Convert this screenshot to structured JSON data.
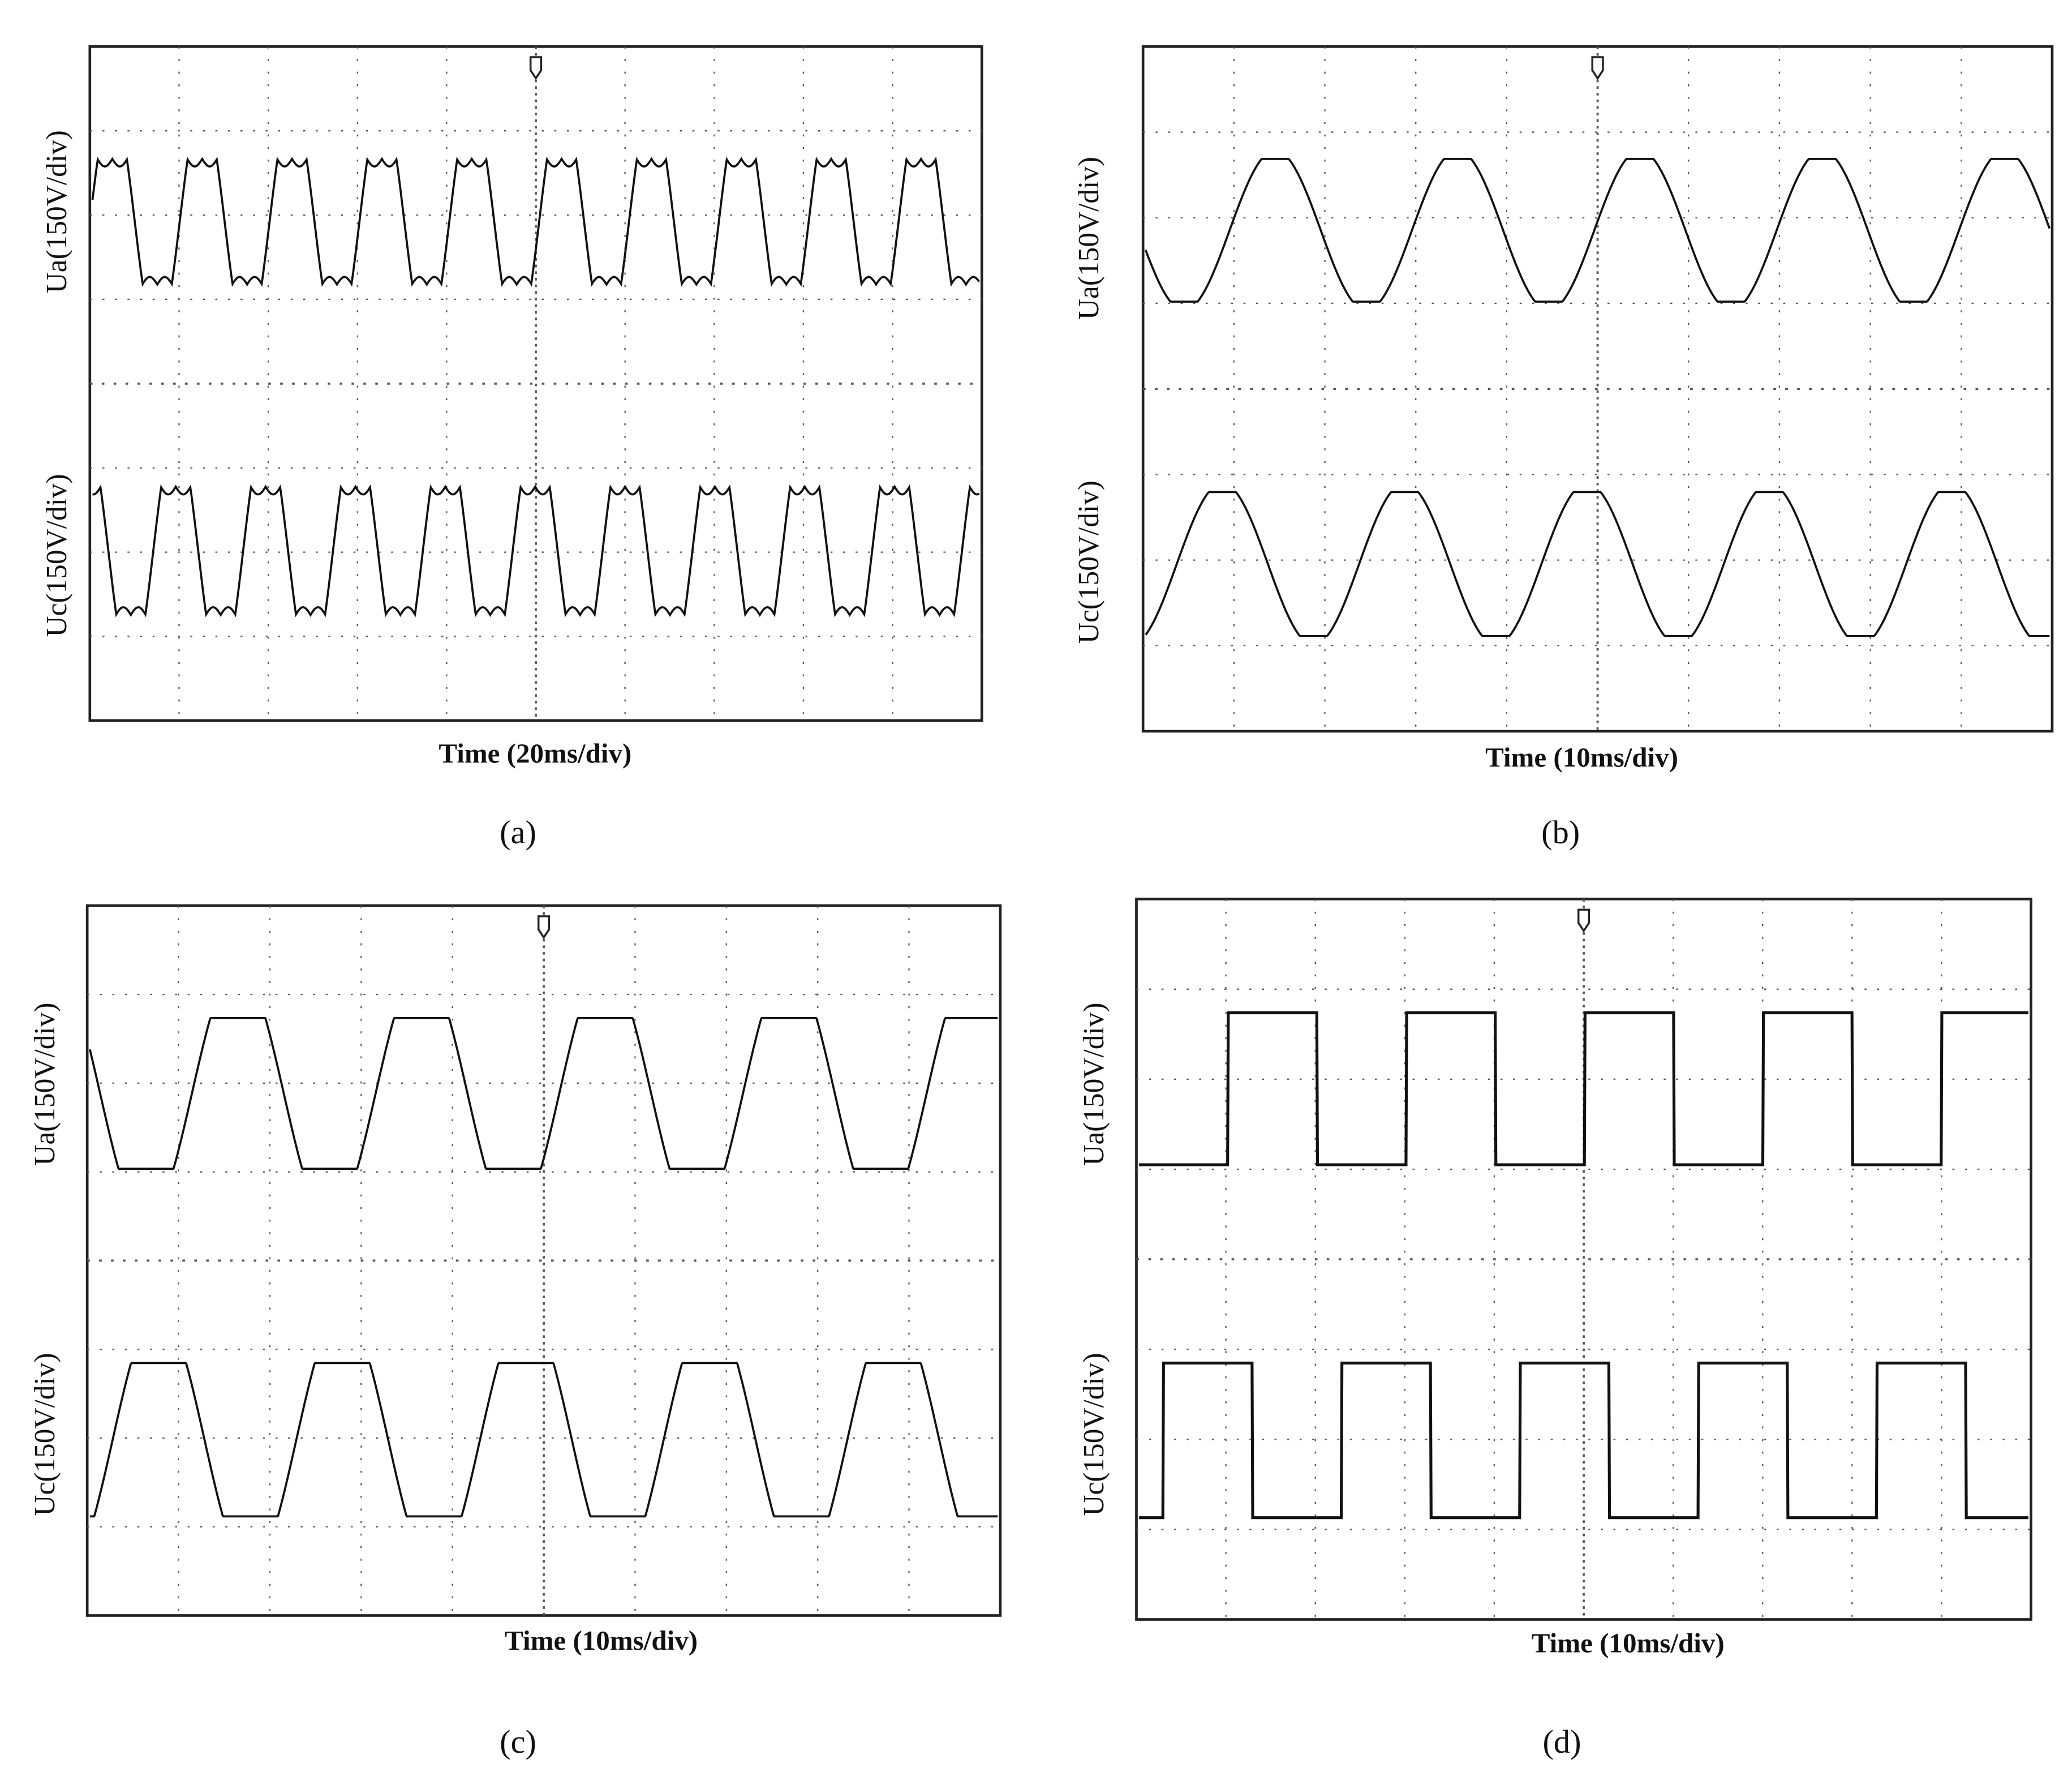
{
  "panels": [
    {
      "ua_label": "Ua(150V/div)",
      "uc_label": "Uc(150V/div)",
      "time_label": "Time (20ms/div)",
      "caption": "(a)"
    },
    {
      "ua_label": "Ua(150V/div)",
      "uc_label": "Uc(150V/div)",
      "time_label": "Time (10ms/div)",
      "caption": "(b)"
    },
    {
      "ua_label": "Ua(150V/div)",
      "uc_label": "Uc(150V/div)",
      "time_label": "Time (10ms/div)",
      "caption": "(c)"
    },
    {
      "ua_label": "Ua(150V/div)",
      "uc_label": "Uc(150V/div)",
      "time_label": "Time (10ms/div)",
      "caption": "(d)"
    }
  ]
}
